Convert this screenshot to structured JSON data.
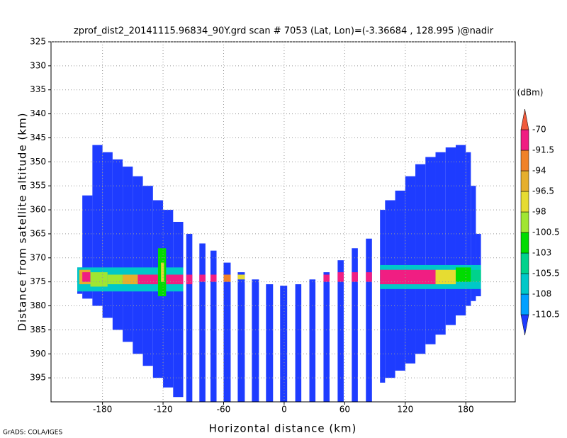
{
  "chart_data": {
    "type": "swath",
    "title": "zprof_dist2_20141115.96834_90Y.grd  scan # 7053  (Lat, Lon)=(-3.36684 , 128.995 )@nadir",
    "x_label": "Horizontal distance (km)",
    "y_label": "Distance from satellite altitude (km)",
    "colorbar_title": "(dBm)",
    "footer": "GrADS: COLA/IGES",
    "xlim": [
      -231,
      229
    ],
    "ylim": [
      325,
      400
    ],
    "y_inverted": true,
    "xticks": [
      -180,
      -120,
      -60,
      0,
      60,
      120,
      180
    ],
    "yticks": [
      325,
      330,
      335,
      340,
      345,
      350,
      355,
      360,
      365,
      370,
      375,
      380,
      385,
      390,
      395
    ],
    "grid": true,
    "field_color": "#1e3cff",
    "levels": [
      -110.5,
      -108,
      -105.5,
      -103,
      -100.5,
      -98,
      -96.5,
      -94,
      -91.5,
      -70
    ],
    "colors": [
      "#1e3cff",
      "#00a0ff",
      "#00c8c8",
      "#00d28c",
      "#00dc00",
      "#a0e632",
      "#e6dc32",
      "#e6af2d",
      "#f08228",
      "#f01e82",
      "#f05a3c"
    ],
    "columns": [
      {
        "x": [
          -205,
          -200
        ],
        "top": 372,
        "bottom": 377.5
      },
      {
        "x": [
          -200,
          -190
        ],
        "top": 357,
        "bottom": 378.5
      },
      {
        "x": [
          -190,
          -180
        ],
        "top": 346.5,
        "bottom": 380
      },
      {
        "x": [
          -180,
          -170
        ],
        "top": 348,
        "bottom": 382.5
      },
      {
        "x": [
          -170,
          -160
        ],
        "top": 349.5,
        "bottom": 385
      },
      {
        "x": [
          -160,
          -150
        ],
        "top": 351,
        "bottom": 387.5
      },
      {
        "x": [
          -150,
          -140
        ],
        "top": 353,
        "bottom": 390
      },
      {
        "x": [
          -140,
          -130
        ],
        "top": 355,
        "bottom": 392.5
      },
      {
        "x": [
          -130,
          -120
        ],
        "top": 358,
        "bottom": 395
      },
      {
        "x": [
          -120,
          -110
        ],
        "top": 360,
        "bottom": 397
      },
      {
        "x": [
          -110,
          -100
        ],
        "top": 362.5,
        "bottom": 399
      },
      {
        "x": [
          -97,
          -91
        ],
        "top": 365,
        "bottom": 400
      },
      {
        "x": [
          -84,
          -78
        ],
        "top": 367,
        "bottom": 400
      },
      {
        "x": [
          -73,
          -67
        ],
        "top": 368.5,
        "bottom": 400
      },
      {
        "x": [
          -60,
          -53
        ],
        "top": 371,
        "bottom": 400
      },
      {
        "x": [
          -46,
          -39
        ],
        "top": 373,
        "bottom": 400
      },
      {
        "x": [
          -32,
          -25
        ],
        "top": 374.5,
        "bottom": 400
      },
      {
        "x": [
          -18,
          -11
        ],
        "top": 375.5,
        "bottom": 400
      },
      {
        "x": [
          -4,
          3
        ],
        "top": 375.8,
        "bottom": 400
      },
      {
        "x": [
          11,
          17
        ],
        "top": 375.5,
        "bottom": 400
      },
      {
        "x": [
          25,
          31
        ],
        "top": 374.5,
        "bottom": 400
      },
      {
        "x": [
          39,
          45
        ],
        "top": 373,
        "bottom": 400
      },
      {
        "x": [
          53,
          59
        ],
        "top": 370.5,
        "bottom": 400
      },
      {
        "x": [
          67,
          73
        ],
        "top": 368,
        "bottom": 400
      },
      {
        "x": [
          81,
          87
        ],
        "top": 366,
        "bottom": 400
      },
      {
        "x": [
          95,
          100
        ],
        "top": 360,
        "bottom": 396
      },
      {
        "x": [
          100,
          110
        ],
        "top": 358,
        "bottom": 395
      },
      {
        "x": [
          110,
          120
        ],
        "top": 356,
        "bottom": 393.5
      },
      {
        "x": [
          120,
          130
        ],
        "top": 353,
        "bottom": 392
      },
      {
        "x": [
          130,
          140
        ],
        "top": 350.5,
        "bottom": 390
      },
      {
        "x": [
          140,
          150
        ],
        "top": 349,
        "bottom": 388
      },
      {
        "x": [
          150,
          160
        ],
        "top": 348,
        "bottom": 386
      },
      {
        "x": [
          160,
          170
        ],
        "top": 347,
        "bottom": 384
      },
      {
        "x": [
          170,
          180
        ],
        "top": 346.5,
        "bottom": 382
      },
      {
        "x": [
          180,
          185
        ],
        "top": 348,
        "bottom": 380
      },
      {
        "x": [
          185,
          190
        ],
        "top": 355,
        "bottom": 379
      },
      {
        "x": [
          190,
          195
        ],
        "top": 365,
        "bottom": 378
      }
    ],
    "echoes": [
      {
        "x": [
          -205,
          -100
        ],
        "top": 372,
        "bottom": 377,
        "value": -106
      },
      {
        "x": [
          95,
          195
        ],
        "top": 371.5,
        "bottom": 376.5,
        "value": -106
      },
      {
        "x": [
          -203,
          -192
        ],
        "top": 372.5,
        "bottom": 375.5,
        "value": -95
      },
      {
        "x": [
          -200,
          -192
        ],
        "top": 373,
        "bottom": 375,
        "value": -91
      },
      {
        "x": [
          -192,
          -175
        ],
        "top": 373,
        "bottom": 376,
        "value": -100
      },
      {
        "x": [
          -175,
          -160
        ],
        "top": 373.5,
        "bottom": 375.5,
        "value": -99
      },
      {
        "x": [
          -160,
          -145
        ],
        "top": 373.5,
        "bottom": 375.5,
        "value": -96
      },
      {
        "x": [
          -145,
          -125
        ],
        "top": 373.5,
        "bottom": 375.5,
        "value": -91
      },
      {
        "x": [
          -125,
          -117
        ],
        "top": 368,
        "bottom": 378,
        "value": -101
      },
      {
        "x": [
          -122,
          -119
        ],
        "top": 371,
        "bottom": 375,
        "value": -97
      },
      {
        "x": [
          -117,
          -100
        ],
        "top": 373.5,
        "bottom": 375.5,
        "value": -91
      },
      {
        "x": [
          -97,
          -91
        ],
        "top": 373.5,
        "bottom": 375.5,
        "value": -91
      },
      {
        "x": [
          -84,
          -78
        ],
        "top": 373.5,
        "bottom": 375,
        "value": -91
      },
      {
        "x": [
          -73,
          -67
        ],
        "top": 373.5,
        "bottom": 375,
        "value": -91
      },
      {
        "x": [
          -60,
          -53
        ],
        "top": 373.5,
        "bottom": 375,
        "value": -92
      },
      {
        "x": [
          -46,
          -39
        ],
        "top": 373.5,
        "bottom": 374.5,
        "value": -97
      },
      {
        "x": [
          39,
          45
        ],
        "top": 373.5,
        "bottom": 375,
        "value": -91
      },
      {
        "x": [
          53,
          59
        ],
        "top": 373,
        "bottom": 375,
        "value": -91
      },
      {
        "x": [
          67,
          73
        ],
        "top": 373,
        "bottom": 375,
        "value": -91
      },
      {
        "x": [
          81,
          87
        ],
        "top": 373,
        "bottom": 375,
        "value": -91
      },
      {
        "x": [
          95,
          150
        ],
        "top": 372.5,
        "bottom": 375.5,
        "value": -91
      },
      {
        "x": [
          150,
          170
        ],
        "top": 372.5,
        "bottom": 375.5,
        "value": -97
      },
      {
        "x": [
          170,
          185
        ],
        "top": 372,
        "bottom": 375,
        "value": -102
      },
      {
        "x": [
          185,
          195
        ],
        "top": 372.5,
        "bottom": 375,
        "value": -105
      }
    ]
  }
}
